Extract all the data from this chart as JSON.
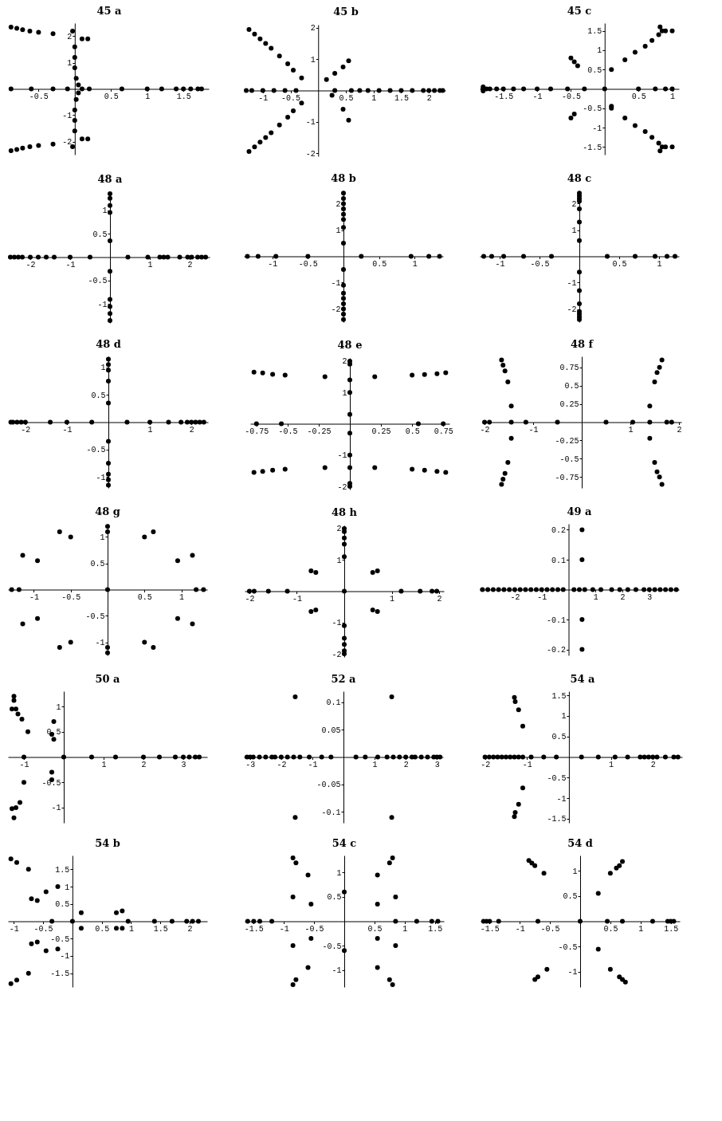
{
  "chart_data": [
    {
      "type": "scatter",
      "title": "45 a",
      "color": "#000000",
      "marker": "circle",
      "xlim": [
        -0.9,
        1.85
      ],
      "ylim": [
        -2.5,
        2.5
      ],
      "xticks": [
        -0.5,
        0.5,
        1,
        1.5
      ],
      "yticks": [
        -2,
        -1,
        1,
        2
      ],
      "x": [
        -0.88,
        -0.8,
        -0.72,
        -0.62,
        -0.5,
        -0.3,
        -0.03,
        0.1,
        0.18,
        0,
        0,
        0,
        0.02,
        0.05,
        -0.88,
        -0.8,
        -0.72,
        -0.62,
        -0.5,
        -0.3,
        -0.03,
        0.1,
        0.18,
        0,
        0,
        0,
        0.02,
        0.05,
        -0.88,
        -0.6,
        -0.3,
        -0.1,
        0.1,
        0.2,
        0.65,
        1.0,
        1.2,
        1.4,
        1.5,
        1.6,
        1.7,
        1.75
      ],
      "values": [
        2.35,
        2.3,
        2.25,
        2.2,
        2.15,
        2.1,
        2.2,
        1.9,
        1.9,
        1.6,
        1.2,
        0.8,
        0.4,
        0.15,
        -2.35,
        -2.3,
        -2.25,
        -2.2,
        -2.15,
        -2.1,
        -2.2,
        -1.9,
        -1.9,
        -1.6,
        -1.2,
        -0.8,
        -0.4,
        -0.15,
        0,
        0,
        0,
        0,
        0,
        0,
        0,
        0,
        0,
        0,
        0,
        0,
        0,
        0
      ]
    },
    {
      "type": "scatter",
      "title": "45 b",
      "color": "#000000",
      "marker": "circle",
      "xlim": [
        -1.3,
        2.3
      ],
      "ylim": [
        -2.1,
        2.1
      ],
      "xticks": [
        -1,
        -0.5,
        0.5,
        1,
        1.5,
        2
      ],
      "yticks": [
        -2,
        -1,
        1,
        2
      ],
      "x": [
        -1.25,
        -1.15,
        -1.05,
        -0.95,
        -0.85,
        -0.7,
        -0.55,
        -0.45,
        -0.3,
        -1.25,
        -1.15,
        -1.05,
        -0.95,
        -0.85,
        -0.7,
        -0.55,
        -0.45,
        -0.3,
        0.15,
        0.3,
        0.45,
        0.55,
        0.25,
        0.45,
        0.55,
        -1.3,
        -1.2,
        -1.0,
        -0.8,
        -0.6,
        -0.4,
        0.3,
        0.6,
        0.75,
        0.9,
        1.1,
        1.3,
        1.5,
        1.7,
        1.9,
        2.0,
        2.1,
        2.2,
        2.25
      ],
      "values": [
        1.95,
        1.8,
        1.65,
        1.5,
        1.35,
        1.1,
        0.85,
        0.65,
        0.4,
        -1.95,
        -1.8,
        -1.65,
        -1.5,
        -1.35,
        -1.1,
        -0.85,
        -0.65,
        -0.4,
        0.35,
        0.55,
        0.75,
        0.95,
        -0.15,
        -0.6,
        -0.95,
        0,
        0,
        0,
        0,
        0,
        0,
        0,
        0,
        0,
        0,
        0,
        0,
        0,
        0,
        0,
        0,
        0,
        0,
        0
      ]
    },
    {
      "type": "scatter",
      "title": "45 c",
      "color": "#000000",
      "marker": "circle",
      "xlim": [
        -1.85,
        1.1
      ],
      "ylim": [
        -1.7,
        1.7
      ],
      "xticks": [
        -1.5,
        -1,
        -0.5,
        0.5,
        1
      ],
      "yticks": [
        -1.5,
        -1,
        -0.5,
        0.5,
        1,
        1.5
      ],
      "x": [
        -1.8,
        -1.75,
        -1.7,
        -1.6,
        -1.5,
        -1.35,
        -1.2,
        -1.0,
        -0.8,
        -0.55,
        -0.3,
        0,
        0.5,
        0.75,
        0.9,
        1.0,
        -1.8,
        -1.8,
        0.1,
        0.3,
        0.45,
        0.6,
        0.7,
        0.8,
        0.85,
        0.9,
        1.0,
        0.82,
        0.1,
        0.3,
        0.45,
        0.6,
        0.7,
        0.8,
        0.85,
        0.9,
        1.0,
        0.82,
        -0.5,
        -0.45,
        -0.4,
        -0.5,
        -0.45,
        0.1
      ],
      "values": [
        0,
        0,
        0,
        0,
        0,
        0,
        0,
        0,
        0,
        0,
        0,
        0,
        0,
        0,
        0,
        0,
        0.05,
        -0.05,
        0.5,
        0.75,
        0.95,
        1.1,
        1.25,
        1.4,
        1.5,
        1.5,
        1.5,
        1.6,
        -0.5,
        -0.75,
        -0.95,
        -1.1,
        -1.25,
        -1.4,
        -1.5,
        -1.5,
        -1.5,
        -1.6,
        0.8,
        0.7,
        0.6,
        -0.75,
        -0.65,
        -0.45
      ]
    },
    {
      "type": "scatter",
      "title": "48 a",
      "color": "#000000",
      "marker": "circle",
      "xlim": [
        -2.5,
        2.5
      ],
      "ylim": [
        -1.4,
        1.4
      ],
      "xticks": [
        -2,
        -1,
        1,
        2
      ],
      "yticks": [
        -1,
        -0.5,
        0.5,
        1
      ],
      "x": [
        0,
        0,
        0,
        0,
        0,
        0,
        0,
        0,
        0,
        0,
        -2.5,
        -2.4,
        -2.3,
        -2.2,
        -2.0,
        -1.8,
        -1.6,
        -1.4,
        -1.0,
        -0.5,
        0.45,
        0.95,
        1.25,
        1.35,
        1.45,
        1.75,
        1.95,
        2.05,
        2.2,
        2.3,
        2.4
      ],
      "values": [
        1.35,
        1.25,
        1.1,
        0.95,
        0.35,
        -0.3,
        -0.9,
        -1.05,
        -1.2,
        -1.35,
        0,
        0,
        0,
        0,
        0,
        0,
        0,
        0,
        0,
        0,
        0,
        0,
        0,
        0,
        0,
        0,
        0,
        0,
        0,
        0,
        0
      ]
    },
    {
      "type": "scatter",
      "title": "48 b",
      "color": "#000000",
      "marker": "circle",
      "xlim": [
        -1.4,
        1.4
      ],
      "ylim": [
        -2.5,
        2.5
      ],
      "xticks": [
        -1,
        -0.5,
        0.5,
        1
      ],
      "yticks": [
        -2,
        -1,
        1,
        2
      ],
      "x": [
        0,
        0,
        0,
        0,
        0,
        0,
        0,
        0,
        0,
        0,
        0,
        0,
        0,
        0,
        0,
        0,
        -1.35,
        -1.2,
        -0.95,
        -0.5,
        0.25,
        0.95,
        1.2,
        1.35
      ],
      "values": [
        2.4,
        2.2,
        2.0,
        1.8,
        1.6,
        1.4,
        1.1,
        0.5,
        -0.5,
        -1.1,
        -1.4,
        -1.6,
        -1.8,
        -2.0,
        -2.2,
        -2.4,
        0,
        0,
        0,
        0,
        0,
        0,
        0,
        0
      ]
    },
    {
      "type": "scatter",
      "title": "48 c",
      "color": "#000000",
      "marker": "circle",
      "xlim": [
        -1.25,
        1.25
      ],
      "ylim": [
        -2.5,
        2.5
      ],
      "xticks": [
        -1,
        -0.5,
        0.5,
        1
      ],
      "yticks": [
        -2,
        -1,
        1,
        2
      ],
      "x": [
        0,
        0,
        0,
        0,
        0,
        0,
        0,
        0,
        0,
        0,
        0,
        0,
        0,
        0,
        -1.2,
        -1.1,
        -0.95,
        -0.7,
        -0.35,
        0.35,
        0.7,
        0.95,
        1.1,
        1.2
      ],
      "values": [
        2.4,
        2.3,
        2.2,
        2.1,
        1.8,
        1.3,
        0.6,
        -0.6,
        -1.3,
        -1.8,
        -2.1,
        -2.2,
        -2.3,
        -2.4,
        0,
        0,
        0,
        0,
        0,
        0,
        0,
        0,
        0,
        0
      ]
    },
    {
      "type": "scatter",
      "title": "48 d",
      "color": "#000000",
      "marker": "circle",
      "xlim": [
        -2.4,
        2.4
      ],
      "ylim": [
        -1.2,
        1.2
      ],
      "xticks": [
        -2,
        -1,
        1,
        2
      ],
      "yticks": [
        -1,
        -0.5,
        0.5,
        1
      ],
      "x": [
        0,
        0,
        0,
        0,
        0,
        0,
        0,
        0,
        0,
        0,
        -2.35,
        -2.3,
        -2.2,
        -2.1,
        -2.0,
        -1.4,
        -1.0,
        -0.4,
        0.45,
        1.0,
        1.45,
        1.75,
        1.9,
        2.0,
        2.1,
        2.2,
        2.3
      ],
      "values": [
        1.15,
        1.05,
        0.95,
        0.75,
        0.35,
        -0.35,
        -0.75,
        -0.95,
        -1.05,
        -1.15,
        0,
        0,
        0,
        0,
        0,
        0,
        0,
        0,
        0,
        0,
        0,
        0,
        0,
        0,
        0,
        0,
        0
      ]
    },
    {
      "type": "scatter",
      "title": "48 e",
      "color": "#000000",
      "marker": "circle",
      "xlim": [
        -0.8,
        0.8
      ],
      "ylim": [
        -2.1,
        2.1
      ],
      "xticks": [
        -0.75,
        -0.5,
        -0.25,
        0.25,
        0.5,
        0.75
      ],
      "yticks": [
        -2,
        -1,
        1,
        2
      ],
      "x": [
        -0.77,
        -0.7,
        -0.62,
        -0.52,
        -0.2,
        0.2,
        0.5,
        0.6,
        0.7,
        0.77,
        -0.77,
        -0.7,
        -0.62,
        -0.52,
        -0.2,
        0.2,
        0.5,
        0.6,
        0.7,
        0.77,
        0,
        0,
        0,
        0,
        0,
        0,
        0,
        0,
        0,
        0,
        -0.75,
        -0.55,
        0.55,
        0.75
      ],
      "values": [
        1.65,
        1.62,
        1.58,
        1.55,
        1.5,
        1.5,
        1.55,
        1.57,
        1.6,
        1.63,
        -1.55,
        -1.52,
        -1.48,
        -1.45,
        -1.4,
        -1.4,
        -1.45,
        -1.48,
        -1.52,
        -1.55,
        2.0,
        1.9,
        1.4,
        1.0,
        0.3,
        -0.3,
        -1.0,
        -1.4,
        -1.9,
        -2.0,
        0,
        0,
        0,
        0
      ]
    },
    {
      "type": "scatter",
      "title": "48 f",
      "color": "#000000",
      "marker": "circle",
      "xlim": [
        -2.05,
        2.05
      ],
      "ylim": [
        -0.9,
        0.9
      ],
      "xticks": [
        -2,
        -1,
        1,
        2
      ],
      "yticks": [
        -0.75,
        -0.5,
        -0.25,
        0.25,
        0.5,
        0.75
      ],
      "x": [
        -1.65,
        -1.62,
        -1.58,
        -1.52,
        -1.45,
        -1.65,
        -1.62,
        -1.58,
        -1.52,
        -1.45,
        1.65,
        1.6,
        1.55,
        1.5,
        1.4,
        1.65,
        1.6,
        1.55,
        1.5,
        1.4,
        -2.0,
        -1.9,
        -1.45,
        -1.15,
        -0.5,
        0.5,
        1.05,
        1.4,
        1.75,
        1.85
      ],
      "values": [
        0.85,
        0.78,
        0.7,
        0.55,
        0.22,
        -0.85,
        -0.78,
        -0.7,
        -0.55,
        -0.22,
        0.85,
        0.75,
        0.68,
        0.55,
        0.22,
        -0.85,
        -0.75,
        -0.68,
        -0.55,
        -0.22,
        0,
        0,
        0,
        0,
        0,
        0,
        0,
        0,
        0,
        0
      ]
    },
    {
      "type": "scatter",
      "title": "48 g",
      "color": "#000000",
      "marker": "circle",
      "xlim": [
        -1.35,
        1.35
      ],
      "ylim": [
        -1.25,
        1.25
      ],
      "xticks": [
        -1,
        -0.5,
        0.5,
        1
      ],
      "yticks": [
        -1,
        -0.5,
        0.5,
        1
      ],
      "x": [
        -0.65,
        -0.5,
        0.5,
        0.62,
        -1.15,
        -0.95,
        0.95,
        1.15,
        -0.65,
        -0.5,
        0.5,
        0.62,
        -1.15,
        -0.95,
        0.95,
        1.15,
        0,
        0,
        0,
        0,
        -1.3,
        -1.2,
        0,
        1.2,
        1.3
      ],
      "values": [
        1.1,
        1.0,
        1.0,
        1.1,
        0.65,
        0.55,
        0.55,
        0.65,
        -1.1,
        -1.0,
        -1.0,
        -1.1,
        -0.65,
        -0.55,
        -0.55,
        -0.65,
        1.2,
        1.1,
        -1.1,
        -1.2,
        0,
        0,
        0,
        0,
        0
      ]
    },
    {
      "type": "scatter",
      "title": "48 h",
      "color": "#000000",
      "marker": "circle",
      "xlim": [
        -2.1,
        2.1
      ],
      "ylim": [
        -2.1,
        2.1
      ],
      "xticks": [
        -2,
        -1,
        1,
        2
      ],
      "yticks": [
        -2,
        -1,
        1,
        2
      ],
      "x": [
        -0.7,
        -0.6,
        0.6,
        0.7,
        -0.7,
        -0.6,
        0.6,
        0.7,
        0,
        0,
        0,
        0,
        0,
        0,
        0,
        0,
        0,
        0,
        -2.0,
        -1.9,
        -1.6,
        -1.2,
        0,
        1.2,
        1.6,
        1.85,
        1.95
      ],
      "values": [
        0.65,
        0.6,
        0.6,
        0.65,
        -0.65,
        -0.6,
        -0.6,
        -0.65,
        2.0,
        1.9,
        1.7,
        1.5,
        1.1,
        -1.1,
        -1.5,
        -1.7,
        -1.9,
        -2.0,
        0,
        0,
        0,
        0,
        0,
        0,
        0,
        0,
        0
      ]
    },
    {
      "type": "scatter",
      "title": "49 a",
      "color": "#000000",
      "marker": "circle",
      "xlim": [
        -3.3,
        4.1
      ],
      "ylim": [
        -0.22,
        0.22
      ],
      "xticks": [
        -2,
        -1,
        1,
        2,
        3
      ],
      "yticks": [
        -0.2,
        -0.1,
        0.1,
        0.2
      ],
      "x": [
        0.5,
        0.5,
        0.5,
        0.5,
        -3.2,
        -3.0,
        -2.8,
        -2.6,
        -2.4,
        -2.2,
        -2.0,
        -1.8,
        -1.6,
        -1.4,
        -1.2,
        -1.0,
        -0.8,
        -0.6,
        -0.4,
        -0.2,
        0.2,
        0.4,
        0.6,
        0.9,
        1.2,
        1.6,
        1.9,
        2.2,
        2.5,
        2.8,
        3.0,
        3.2,
        3.4,
        3.6,
        3.8,
        4.0
      ],
      "values": [
        0.2,
        0.1,
        -0.1,
        -0.2,
        0,
        0,
        0,
        0,
        0,
        0,
        0,
        0,
        0,
        0,
        0,
        0,
        0,
        0,
        0,
        0,
        0,
        0,
        0,
        0,
        0,
        0,
        0,
        0,
        0,
        0,
        0,
        0,
        0,
        0,
        0,
        0
      ]
    },
    {
      "type": "scatter",
      "title": "50 a",
      "color": "#000000",
      "marker": "circle",
      "xlim": [
        -1.4,
        3.6
      ],
      "ylim": [
        -1.3,
        1.3
      ],
      "xticks": [
        -1,
        1,
        2,
        3
      ],
      "yticks": [
        -1,
        -0.5,
        0.5,
        1
      ],
      "x": [
        -1.25,
        -1.25,
        -1.3,
        -1.2,
        -1.15,
        -1.05,
        -0.9,
        -0.25,
        -0.3,
        -0.25,
        -1.25,
        -1.3,
        -1.2,
        -1.1,
        -1.0,
        -0.3,
        -0.3,
        -1.0,
        0,
        0.7,
        1.3,
        2.0,
        2.4,
        2.8,
        3.0,
        3.15,
        3.3,
        3.4
      ],
      "values": [
        1.2,
        1.12,
        0.95,
        0.95,
        0.85,
        0.75,
        0.5,
        0.7,
        0.45,
        0.35,
        -1.2,
        -1.02,
        -1.0,
        -0.9,
        -0.5,
        -0.3,
        -0.45,
        0,
        0,
        0,
        0,
        0,
        0,
        0,
        0,
        0,
        0,
        0
      ]
    },
    {
      "type": "scatter",
      "title": "52 a",
      "color": "#000000",
      "marker": "circle",
      "xlim": [
        -3.2,
        3.2
      ],
      "ylim": [
        -0.12,
        0.12
      ],
      "xticks": [
        -3,
        -2,
        -1,
        1,
        2,
        3
      ],
      "yticks": [
        -0.1,
        -0.05,
        0.05,
        0.1
      ],
      "x": [
        -1.55,
        1.55,
        -1.55,
        1.55,
        -3.1,
        -3.0,
        -2.9,
        -2.7,
        -2.5,
        -2.3,
        -2.2,
        -2.0,
        -1.8,
        -1.6,
        -1.4,
        -1.1,
        -0.7,
        -0.4,
        0.4,
        0.7,
        1.1,
        1.4,
        1.6,
        1.8,
        2.0,
        2.2,
        2.3,
        2.5,
        2.7,
        2.9,
        3.0,
        3.1
      ],
      "values": [
        0.11,
        0.11,
        -0.11,
        -0.11,
        0,
        0,
        0,
        0,
        0,
        0,
        0,
        0,
        0,
        0,
        0,
        0,
        0,
        0,
        0,
        0,
        0,
        0,
        0,
        0,
        0,
        0,
        0,
        0,
        0,
        0,
        0,
        0
      ]
    },
    {
      "type": "scatter",
      "title": "54 a",
      "color": "#000000",
      "marker": "circle",
      "xlim": [
        -2.05,
        2.7
      ],
      "ylim": [
        -1.6,
        1.6
      ],
      "xticks": [
        -2,
        -1,
        1,
        2
      ],
      "yticks": [
        -1.5,
        -1,
        -0.5,
        0.5,
        1,
        1.5
      ],
      "x": [
        -1.3,
        -1.28,
        -1.2,
        -1.1,
        -1.3,
        -1.28,
        -1.2,
        -1.1,
        -2.0,
        -1.9,
        -1.8,
        -1.7,
        -1.6,
        -1.5,
        -1.4,
        -1.3,
        -1.2,
        -1.1,
        -0.9,
        -0.6,
        -0.3,
        0.3,
        0.7,
        1.1,
        1.4,
        1.7,
        1.8,
        1.9,
        2.0,
        2.1,
        2.3,
        2.5,
        2.6
      ],
      "values": [
        1.45,
        1.35,
        1.15,
        0.75,
        -1.45,
        -1.35,
        -1.15,
        -0.75,
        0,
        0,
        0,
        0,
        0,
        0,
        0,
        0,
        0,
        0,
        0,
        0,
        0,
        0,
        0,
        0,
        0,
        0,
        0,
        0,
        0,
        0,
        0,
        0,
        0
      ]
    },
    {
      "type": "scatter",
      "title": "54 b",
      "color": "#000000",
      "marker": "circle",
      "xlim": [
        -1.1,
        2.3
      ],
      "ylim": [
        -1.9,
        1.9
      ],
      "xticks": [
        -1,
        -0.5,
        0.5,
        1,
        1.5,
        2
      ],
      "yticks": [
        -1.5,
        -1,
        -0.5,
        0.5,
        1,
        1.5
      ],
      "x": [
        -1.05,
        -0.95,
        -0.75,
        -0.7,
        -0.6,
        -0.45,
        -0.25,
        0.15,
        0.75,
        0.85,
        -1.05,
        -0.95,
        -0.75,
        -0.7,
        -0.6,
        -0.45,
        -0.25,
        0.15,
        0.75,
        0.85,
        -0.35,
        0,
        0.95,
        1.4,
        1.7,
        1.95,
        2.05,
        2.15
      ],
      "values": [
        1.8,
        1.7,
        1.5,
        0.65,
        0.6,
        0.85,
        1.0,
        0.25,
        0.25,
        0.3,
        -1.8,
        -1.7,
        -1.5,
        -0.65,
        -0.6,
        -0.85,
        -0.8,
        -0.2,
        -0.2,
        -0.2,
        0,
        0,
        0,
        0,
        0,
        0,
        0,
        0
      ]
    },
    {
      "type": "scatter",
      "title": "54 c",
      "color": "#000000",
      "marker": "circle",
      "xlim": [
        -1.65,
        1.65
      ],
      "ylim": [
        -1.35,
        1.35
      ],
      "xticks": [
        -1.5,
        -1,
        -0.5,
        0.5,
        1,
        1.5
      ],
      "yticks": [
        -1,
        -0.5,
        0.5,
        1
      ],
      "x": [
        -0.85,
        -0.8,
        -0.6,
        -0.85,
        -0.55,
        0.55,
        0.85,
        0.55,
        0.75,
        0.8,
        -0.85,
        -0.8,
        -0.6,
        -0.85,
        -0.55,
        0.55,
        0.85,
        0.55,
        0.75,
        0.8,
        0,
        0,
        -1.6,
        -1.5,
        -1.4,
        -1.2,
        0.85,
        1.2,
        1.45,
        1.55
      ],
      "values": [
        1.3,
        1.2,
        0.95,
        0.5,
        0.35,
        0.35,
        0.5,
        0.95,
        1.2,
        1.3,
        -1.3,
        -1.2,
        -0.95,
        -0.5,
        -0.35,
        -0.35,
        -0.5,
        -0.95,
        -1.2,
        -1.3,
        0.6,
        -0.6,
        0,
        0,
        0,
        0,
        0,
        0,
        0,
        0
      ]
    },
    {
      "type": "scatter",
      "title": "54 d",
      "color": "#000000",
      "marker": "circle",
      "xlim": [
        -1.65,
        1.65
      ],
      "ylim": [
        -1.3,
        1.3
      ],
      "xticks": [
        -1.5,
        -1,
        -0.5,
        0.5,
        1,
        1.5
      ],
      "yticks": [
        -1,
        -0.5,
        0.5,
        1
      ],
      "x": [
        -0.85,
        -0.8,
        -0.75,
        -0.6,
        0.5,
        0.6,
        0.65,
        0.7,
        0.3,
        -0.75,
        -0.7,
        -0.55,
        0.3,
        0.5,
        0.65,
        0.7,
        0.75,
        -1.6,
        -1.55,
        -1.5,
        -1.35,
        -0.7,
        0,
        0.45,
        0.7,
        1.2,
        1.45,
        1.5,
        1.55
      ],
      "values": [
        1.2,
        1.15,
        1.1,
        0.95,
        0.95,
        1.05,
        1.1,
        1.18,
        0.55,
        -1.15,
        -1.1,
        -0.95,
        -0.55,
        -0.95,
        -1.1,
        -1.15,
        -1.2,
        0,
        0,
        0,
        0,
        0,
        0,
        0,
        0,
        0,
        0,
        0,
        0
      ]
    }
  ]
}
